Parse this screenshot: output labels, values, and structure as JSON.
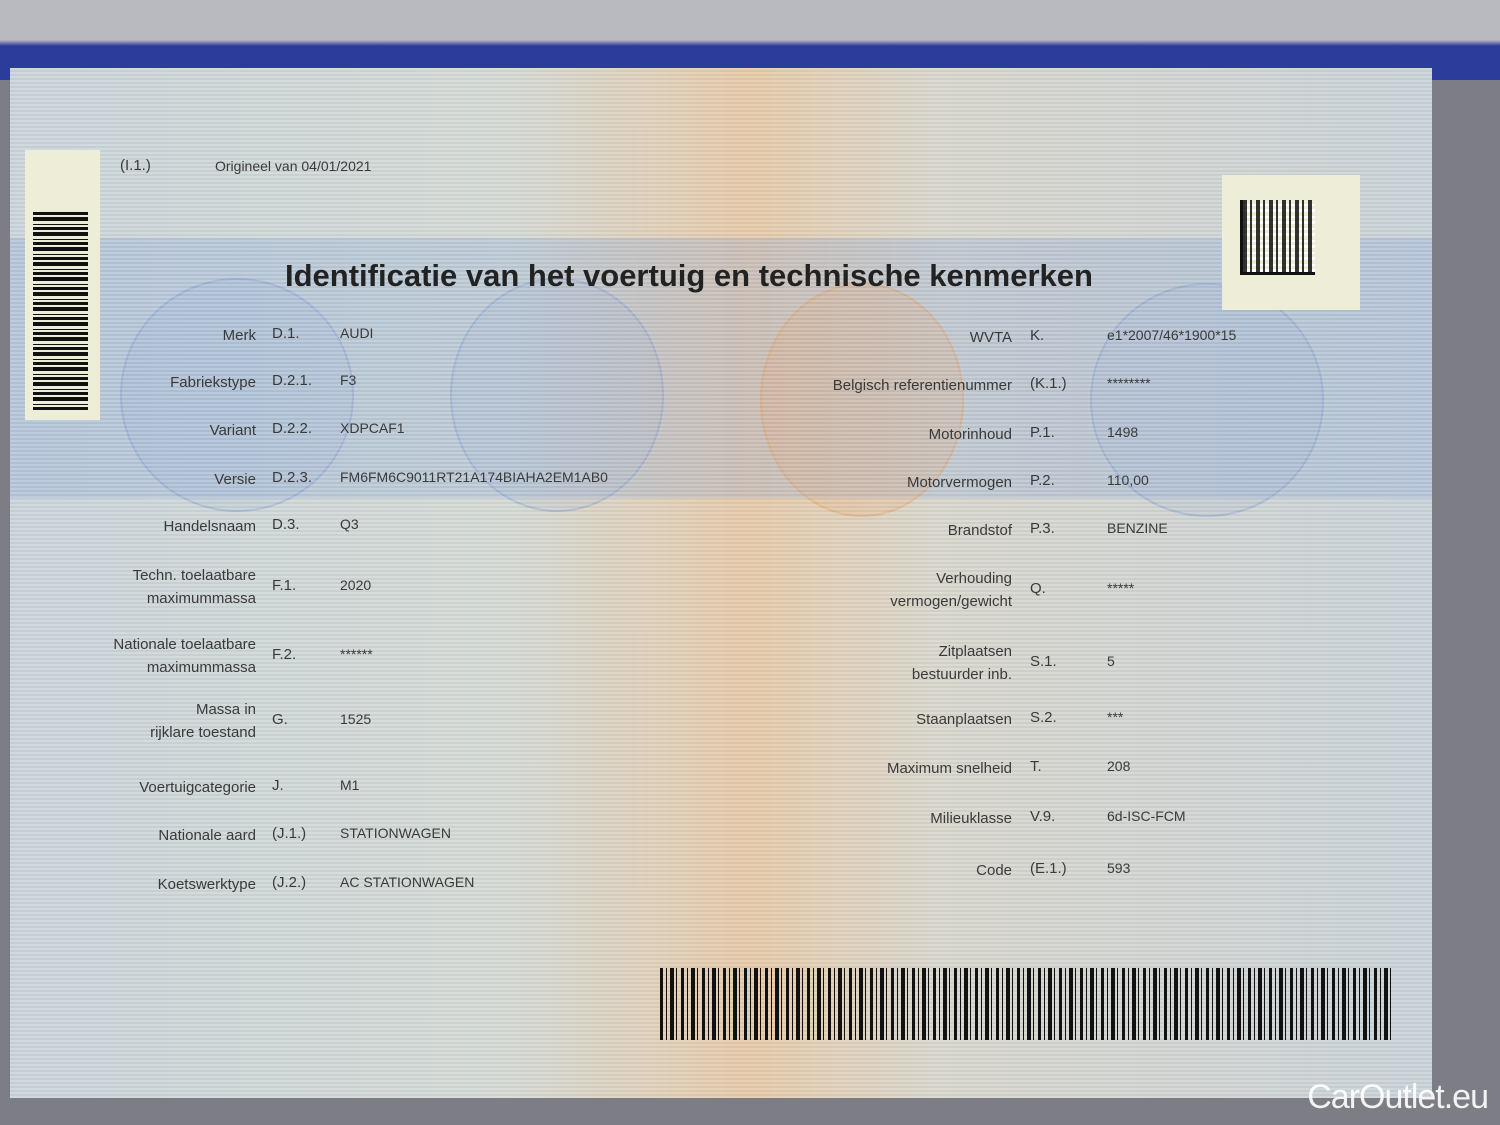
{
  "header": {
    "ref_code": "(I.1.)",
    "original_date": "Origineel van 04/01/2021",
    "title": "Identificatie van het voertuig en technische kenmerken"
  },
  "left_fields": [
    {
      "label": "Merk",
      "code": "D.1.",
      "value": "AUDI"
    },
    {
      "label": "Fabriekstype",
      "code": "D.2.1.",
      "value": "F3"
    },
    {
      "label": "Variant",
      "code": "D.2.2.",
      "value": "XDPCAF1"
    },
    {
      "label": "Versie",
      "code": "D.2.3.",
      "value": "FM6FM6C9011RT21A174BIAHA2EM1AB0"
    },
    {
      "label": "Handelsnaam",
      "code": "D.3.",
      "value": "Q3"
    },
    {
      "label": "Techn. toelaatbare\nmaximummassa",
      "code": "F.1.",
      "value": "2020"
    },
    {
      "label": "Nationale toelaatbare\nmaximummassa",
      "code": "F.2.",
      "value": "******"
    },
    {
      "label": "Massa in\nrijklare toestand",
      "code": "G.",
      "value": "1525"
    },
    {
      "label": "Voertuigcategorie",
      "code": "J.",
      "value": "M1"
    },
    {
      "label": "Nationale aard",
      "code": "(J.1.)",
      "value": "STATIONWAGEN"
    },
    {
      "label": "Koetswerktype",
      "code": "(J.2.)",
      "value": "AC STATIONWAGEN"
    }
  ],
  "right_fields": [
    {
      "label": "WVTA",
      "code": "K.",
      "value": "e1*2007/46*1900*15"
    },
    {
      "label": "Belgisch referentienummer",
      "code": "(K.1.)",
      "value": "********"
    },
    {
      "label": "Motorinhoud",
      "code": "P.1.",
      "value": "1498"
    },
    {
      "label": "Motorvermogen",
      "code": "P.2.",
      "value": "110,00"
    },
    {
      "label": "Brandstof",
      "code": "P.3.",
      "value": "BENZINE"
    },
    {
      "label": "Verhouding\nvermogen/gewicht",
      "code": "Q.",
      "value": "*****"
    },
    {
      "label": "Zitplaatsen\nbestuurder inb.",
      "code": "S.1.",
      "value": "5"
    },
    {
      "label": "Staanplaatsen",
      "code": "S.2.",
      "value": "***"
    },
    {
      "label": "Maximum snelheid",
      "code": "T.",
      "value": "208"
    },
    {
      "label": "Milieuklasse",
      "code": "V.9.",
      "value": "6d-ISC-FCM"
    },
    {
      "label": "Code",
      "code": "(E.1.)",
      "value": "593"
    }
  ],
  "watermark": "CarOutlet.eu",
  "icons": {
    "left_barcode": "barcode-icon",
    "bottom_barcode": "barcode-icon",
    "matrix_code": "datamatrix-icon"
  }
}
